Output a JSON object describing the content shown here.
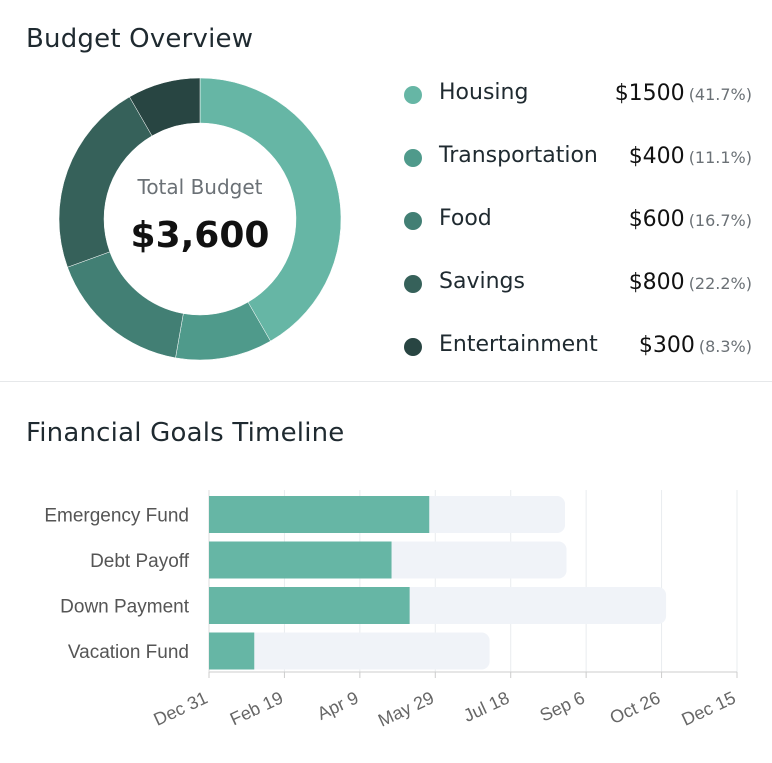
{
  "budget": {
    "title": "Budget Overview",
    "center_caption": "Total Budget",
    "center_value": "$3,600",
    "items": [
      {
        "name": "Housing",
        "amount": "$1500",
        "percent": "(41.7%)",
        "value": 1500,
        "color": "#66b6a5"
      },
      {
        "name": "Transportation",
        "amount": "$400",
        "percent": "(11.1%)",
        "value": 400,
        "color": "#4f9a8b"
      },
      {
        "name": "Food",
        "amount": "$600",
        "percent": "(16.7%)",
        "value": 600,
        "color": "#427f74"
      },
      {
        "name": "Savings",
        "amount": "$800",
        "percent": "(22.2%)",
        "value": 800,
        "color": "#36615a"
      },
      {
        "name": "Entertainment",
        "amount": "$300",
        "percent": "(8.3%)",
        "value": 300,
        "color": "#284542"
      }
    ]
  },
  "goals": {
    "title": "Financial Goals Timeline"
  },
  "chart_data": [
    {
      "type": "pie",
      "categories": [
        "Housing",
        "Transportation",
        "Food",
        "Savings",
        "Entertainment"
      ],
      "values": [
        1500,
        400,
        600,
        800,
        300
      ],
      "title": "Budget Overview",
      "center_text": [
        "Total Budget",
        "$3,600"
      ],
      "colors": [
        "#66b6a5",
        "#4f9a8b",
        "#427f74",
        "#36615a",
        "#284542"
      ],
      "legend": "right"
    },
    {
      "type": "bar",
      "orientation": "horizontal",
      "title": "Financial Goals Timeline",
      "categories": [
        "Emergency Fund",
        "Debt Payoff",
        "Down Payment",
        "Vacation Fund"
      ],
      "series": [
        {
          "values_start": [
            "Dec 31",
            "Dec 31",
            "Dec 31",
            "Dec 31"
          ],
          "values_end": [
            "May 25",
            "Apr 30",
            "May 12",
            "Jan 30"
          ],
          "color": "#66b6a5"
        },
        {
          "values_start": [
            "Dec 31",
            "Dec 31",
            "Dec 31",
            "Dec 31"
          ],
          "values_end": [
            "Aug 23",
            "Aug 24",
            "Oct 29",
            "Jul 4"
          ],
          "color": "#f0f3f8"
        }
      ],
      "x_ticks": [
        "Dec 31",
        "Feb 19",
        "Apr 9",
        "May 29",
        "Jul 18",
        "Sep 6",
        "Oct 26",
        "Dec 15"
      ],
      "xlim": [
        "Dec 31",
        "Dec 15"
      ],
      "grid": true,
      "xlabel": "",
      "ylabel": ""
    }
  ]
}
